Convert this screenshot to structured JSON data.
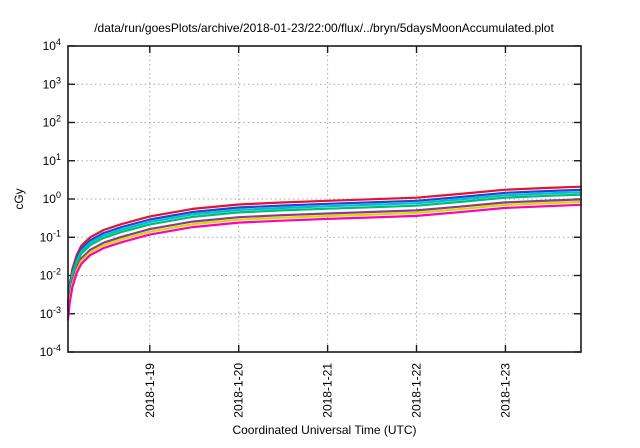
{
  "chart_data": {
    "type": "line",
    "title": "/data/run/goesPlots/archive/2018-01-23/22:00/flux/../bryn/5daysMoonAccumulated.plot",
    "xlabel": "Coordinated Universal Time (UTC)",
    "ylabel": "cGy",
    "y_scale": "log10",
    "y_tick_base": "10",
    "y_tick_exponents": [
      4,
      3,
      2,
      1,
      0,
      -1,
      -2,
      -3,
      -4
    ],
    "ylim_exponents": [
      -4,
      4
    ],
    "x_range_days": [
      0,
      5.77
    ],
    "x_ticks": [
      {
        "label": "2018-1-19",
        "t": 0.92
      },
      {
        "label": "2018-1-20",
        "t": 1.92
      },
      {
        "label": "2018-1-21",
        "t": 2.92
      },
      {
        "label": "2018-1-22",
        "t": 3.92
      },
      {
        "label": "2018-1-23",
        "t": 4.92
      }
    ],
    "grid": true,
    "legend_position": "none",
    "t_days": [
      0,
      0.02,
      0.05,
      0.1,
      0.15,
      0.25,
      0.4,
      0.6,
      0.92,
      1.4,
      1.92,
      2.4,
      2.92,
      3.4,
      3.92,
      4.4,
      4.92,
      5.4,
      5.77
    ],
    "series": [
      {
        "name": "dose-curve-red",
        "color": "#e8112d",
        "end_value_cGy": 2.1,
        "values": [
          0.002,
          0.006,
          0.015,
          0.035,
          0.06,
          0.1,
          0.155,
          0.22,
          0.35,
          0.55,
          0.72,
          0.81,
          0.9,
          0.98,
          1.08,
          1.35,
          1.75,
          1.95,
          2.1
        ]
      },
      {
        "name": "dose-curve-blue",
        "color": "#1c48d8",
        "end_value_cGy": 1.74,
        "values": [
          0.0017,
          0.005,
          0.012,
          0.029,
          0.05,
          0.083,
          0.129,
          0.183,
          0.291,
          0.457,
          0.598,
          0.672,
          0.747,
          0.813,
          0.896,
          1.12,
          1.45,
          1.62,
          1.74
        ]
      },
      {
        "name": "dose-curve-cyan",
        "color": "#00bcd4",
        "end_value_cGy": 1.51,
        "values": [
          0.0014,
          0.0043,
          0.011,
          0.025,
          0.043,
          0.072,
          0.112,
          0.158,
          0.252,
          0.396,
          0.518,
          0.583,
          0.648,
          0.706,
          0.778,
          0.972,
          1.26,
          1.4,
          1.51
        ]
      },
      {
        "name": "dose-curve-green",
        "color": "#00c070",
        "end_value_cGy": 1.3,
        "values": [
          0.0012,
          0.0037,
          0.009,
          0.022,
          0.037,
          0.062,
          0.096,
          0.136,
          0.217,
          0.341,
          0.446,
          0.502,
          0.558,
          0.608,
          0.67,
          0.837,
          1.09,
          1.21,
          1.3
        ]
      },
      {
        "name": "dose-curve-purple",
        "color": "#8b3a92",
        "end_value_cGy": 0.98,
        "values": [
          0.0009,
          0.0028,
          0.007,
          0.016,
          0.028,
          0.047,
          0.072,
          0.102,
          0.163,
          0.256,
          0.335,
          0.377,
          0.419,
          0.456,
          0.502,
          0.628,
          0.814,
          0.907,
          0.977
        ]
      },
      {
        "name": "dose-curve-yellow",
        "color": "#d9d900",
        "end_value_cGy": 0.84,
        "values": [
          0.0008,
          0.0024,
          0.006,
          0.014,
          0.024,
          0.04,
          0.062,
          0.088,
          0.14,
          0.22,
          0.288,
          0.324,
          0.36,
          0.392,
          0.432,
          0.54,
          0.7,
          0.78,
          0.84
        ]
      },
      {
        "name": "dose-curve-magenta",
        "color": "#ff00bb",
        "end_value_cGy": 0.7,
        "values": [
          0.0007,
          0.002,
          0.005,
          0.012,
          0.02,
          0.034,
          0.052,
          0.074,
          0.117,
          0.184,
          0.241,
          0.271,
          0.302,
          0.328,
          0.362,
          0.452,
          0.586,
          0.653,
          0.704
        ]
      }
    ],
    "style": {
      "border_color": "#1a1a1a",
      "grid_color": "#a8a8a8",
      "line_width": 2.2
    }
  }
}
